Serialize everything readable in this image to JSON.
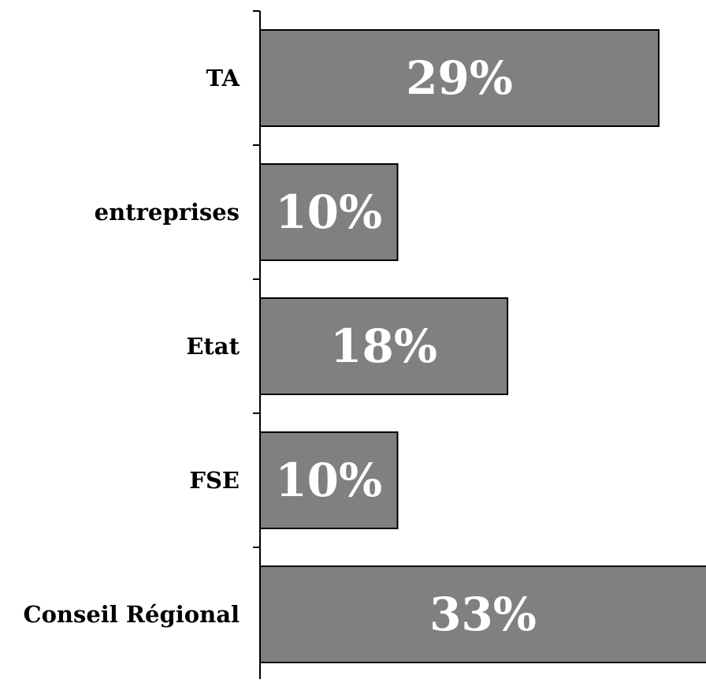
{
  "chart_data": {
    "type": "bar",
    "orientation": "horizontal",
    "categories": [
      "TA",
      "entreprises",
      "Etat",
      "FSE",
      "Conseil Régional"
    ],
    "values": [
      29,
      10,
      18,
      10,
      33
    ],
    "data_labels": [
      "29%",
      "10%",
      "18%",
      "10%",
      "33%"
    ],
    "unit": "%",
    "xlim": [
      0,
      32
    ],
    "grid": false,
    "legend": "none",
    "colors": {
      "bar_fill": "#808080",
      "bar_stroke": "#000000",
      "data_label": "#ffffff",
      "category_label": "#000000",
      "axis": "#000000"
    }
  }
}
